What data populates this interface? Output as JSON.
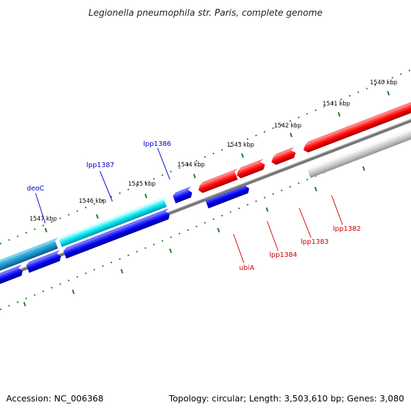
{
  "title": "Legionella pneumophila str. Paris, complete genome",
  "footer": {
    "accession": "Accession: NC_006368",
    "summary": "Topology: circular; Length: 3,503,610 bp; Genes: 3,080"
  },
  "colors": {
    "forward_feature": "#ff0000",
    "reverse_feature": "#0000ff",
    "highlight_feature": "#00e5ee",
    "highlight_feature_dark": "#1e90c8",
    "backbone": "#777777",
    "ticks": "#1a7a1a",
    "forward_label": "#cc0000",
    "reverse_label": "#0000cc"
  },
  "tick_labels": [
    {
      "label": "1540 kbp",
      "kbp": 1540
    },
    {
      "label": "1541 kbp",
      "kbp": 1541
    },
    {
      "label": "1542 kbp",
      "kbp": 1542
    },
    {
      "label": "1543 kbp",
      "kbp": 1543
    },
    {
      "label": "1544 kbp",
      "kbp": 1544
    },
    {
      "label": "1545 kbp",
      "kbp": 1545
    },
    {
      "label": "1546 kbp",
      "kbp": 1546
    },
    {
      "label": "1547 kbp",
      "kbp": 1547
    }
  ],
  "gene_labels": [
    {
      "name": "deoC",
      "strand": "reverse"
    },
    {
      "name": "lpp1387",
      "strand": "reverse"
    },
    {
      "name": "lpp1386",
      "strand": "reverse"
    },
    {
      "name": "ubiA",
      "strand": "forward"
    },
    {
      "name": "lpp1384",
      "strand": "forward"
    },
    {
      "name": "lpp1383",
      "strand": "forward"
    },
    {
      "name": "lpp1382",
      "strand": "forward"
    }
  ]
}
